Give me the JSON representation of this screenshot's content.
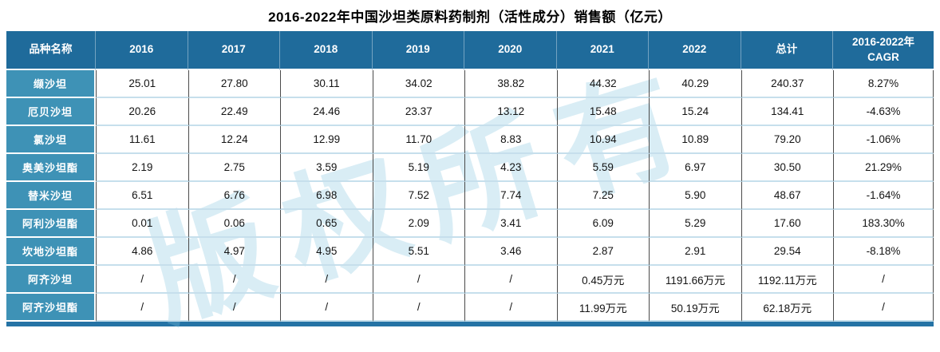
{
  "title": "2016-2022年中国沙坦类原料药制剂（活性成分）销售额（亿元）",
  "watermark": "版权所有",
  "colors": {
    "header_bg": "#1f6b9b",
    "label_bg": "#3e92b6",
    "row_divider": "#c6dfec",
    "cell_divider": "#4a4a4a",
    "accent_bar": "#2573a5"
  },
  "chart_data": {
    "type": "table",
    "title": "2016-2022年中国沙坦类原料药制剂（活性成分）销售额（亿元）",
    "columns": [
      "品种名称",
      "2016",
      "2017",
      "2018",
      "2019",
      "2020",
      "2021",
      "2022",
      "总计",
      "2016-2022年\nCAGR"
    ],
    "rows": [
      {
        "name": "缬沙坦",
        "values": [
          "25.01",
          "27.80",
          "30.11",
          "34.02",
          "38.82",
          "44.32",
          "40.29",
          "240.37",
          "8.27%"
        ]
      },
      {
        "name": "厄贝沙坦",
        "values": [
          "20.26",
          "22.49",
          "24.46",
          "23.37",
          "13.12",
          "15.48",
          "15.24",
          "134.41",
          "-4.63%"
        ]
      },
      {
        "name": "氯沙坦",
        "values": [
          "11.61",
          "12.24",
          "12.99",
          "11.70",
          "8.83",
          "10.94",
          "10.89",
          "79.20",
          "-1.06%"
        ]
      },
      {
        "name": "奥美沙坦酯",
        "values": [
          "2.19",
          "2.75",
          "3.59",
          "5.19",
          "4.23",
          "5.59",
          "6.97",
          "30.50",
          "21.29%"
        ]
      },
      {
        "name": "替米沙坦",
        "values": [
          "6.51",
          "6.76",
          "6.98",
          "7.52",
          "7.74",
          "7.25",
          "5.90",
          "48.67",
          "-1.64%"
        ]
      },
      {
        "name": "阿利沙坦酯",
        "values": [
          "0.01",
          "0.06",
          "0.65",
          "2.09",
          "3.41",
          "6.09",
          "5.29",
          "17.60",
          "183.30%"
        ]
      },
      {
        "name": "坎地沙坦酯",
        "values": [
          "4.86",
          "4.97",
          "4.95",
          "5.51",
          "3.46",
          "2.87",
          "2.91",
          "29.54",
          "-8.18%"
        ]
      },
      {
        "name": "阿齐沙坦",
        "values": [
          "/",
          "/",
          "/",
          "/",
          "/",
          "0.45万元",
          "1191.66万元",
          "1192.11万元",
          "/"
        ]
      },
      {
        "name": "阿齐沙坦酯",
        "values": [
          "/",
          "/",
          "/",
          "/",
          "/",
          "11.99万元",
          "50.19万元",
          "62.18万元",
          "/"
        ]
      }
    ]
  }
}
